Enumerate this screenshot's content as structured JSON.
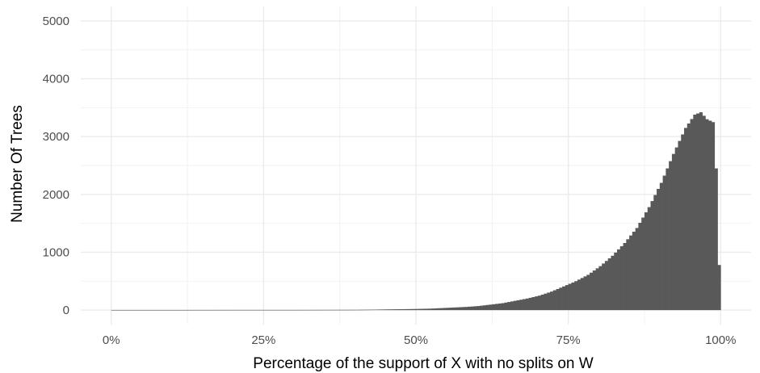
{
  "chart_data": {
    "type": "bar",
    "xlabel": "Percentage of the support of X with no splits on W",
    "ylabel": "Number Of Trees",
    "x_range": [
      0,
      1
    ],
    "ylim": [
      0,
      5000
    ],
    "y_ticks": [
      0,
      1000,
      2000,
      3000,
      4000,
      5000
    ],
    "y_tick_labels": [
      "0",
      "1000",
      "2000",
      "3000",
      "4000",
      "5000"
    ],
    "x_ticks": [
      0,
      0.25,
      0.5,
      0.75,
      1.0
    ],
    "x_tick_labels": [
      "0%",
      "25%",
      "50%",
      "75%",
      "100%"
    ],
    "bin_width": 0.005,
    "bar_color": "#595959",
    "grid": true,
    "legend": "none",
    "bins": [
      {
        "x": 0.0,
        "value": 2
      },
      {
        "x": 0.1,
        "value": 2
      },
      {
        "x": 0.2,
        "value": 3
      },
      {
        "x": 0.3,
        "value": 3
      },
      {
        "x": 0.4,
        "value": 5
      },
      {
        "x": 0.43,
        "value": 8
      },
      {
        "x": 0.45,
        "value": 12
      },
      {
        "x": 0.47,
        "value": 15
      },
      {
        "x": 0.5,
        "value": 20
      },
      {
        "x": 0.52,
        "value": 25
      },
      {
        "x": 0.55,
        "value": 40
      },
      {
        "x": 0.58,
        "value": 55
      },
      {
        "x": 0.6,
        "value": 70
      },
      {
        "x": 0.62,
        "value": 95
      },
      {
        "x": 0.64,
        "value": 120
      },
      {
        "x": 0.66,
        "value": 160
      },
      {
        "x": 0.68,
        "value": 200
      },
      {
        "x": 0.7,
        "value": 250
      },
      {
        "x": 0.72,
        "value": 320
      },
      {
        "x": 0.74,
        "value": 410
      },
      {
        "x": 0.76,
        "value": 500
      },
      {
        "x": 0.78,
        "value": 610
      },
      {
        "x": 0.8,
        "value": 760
      },
      {
        "x": 0.82,
        "value": 940
      },
      {
        "x": 0.84,
        "value": 1160
      },
      {
        "x": 0.86,
        "value": 1420
      },
      {
        "x": 0.88,
        "value": 1780
      },
      {
        "x": 0.9,
        "value": 2200
      },
      {
        "x": 0.92,
        "value": 2700
      },
      {
        "x": 0.94,
        "value": 3150
      },
      {
        "x": 0.955,
        "value": 3380
      },
      {
        "x": 0.965,
        "value": 3420
      },
      {
        "x": 0.975,
        "value": 3300
      },
      {
        "x": 0.985,
        "value": 3250
      },
      {
        "x": 0.99,
        "value": 2450
      },
      {
        "x": 0.995,
        "value": 780
      }
    ]
  }
}
